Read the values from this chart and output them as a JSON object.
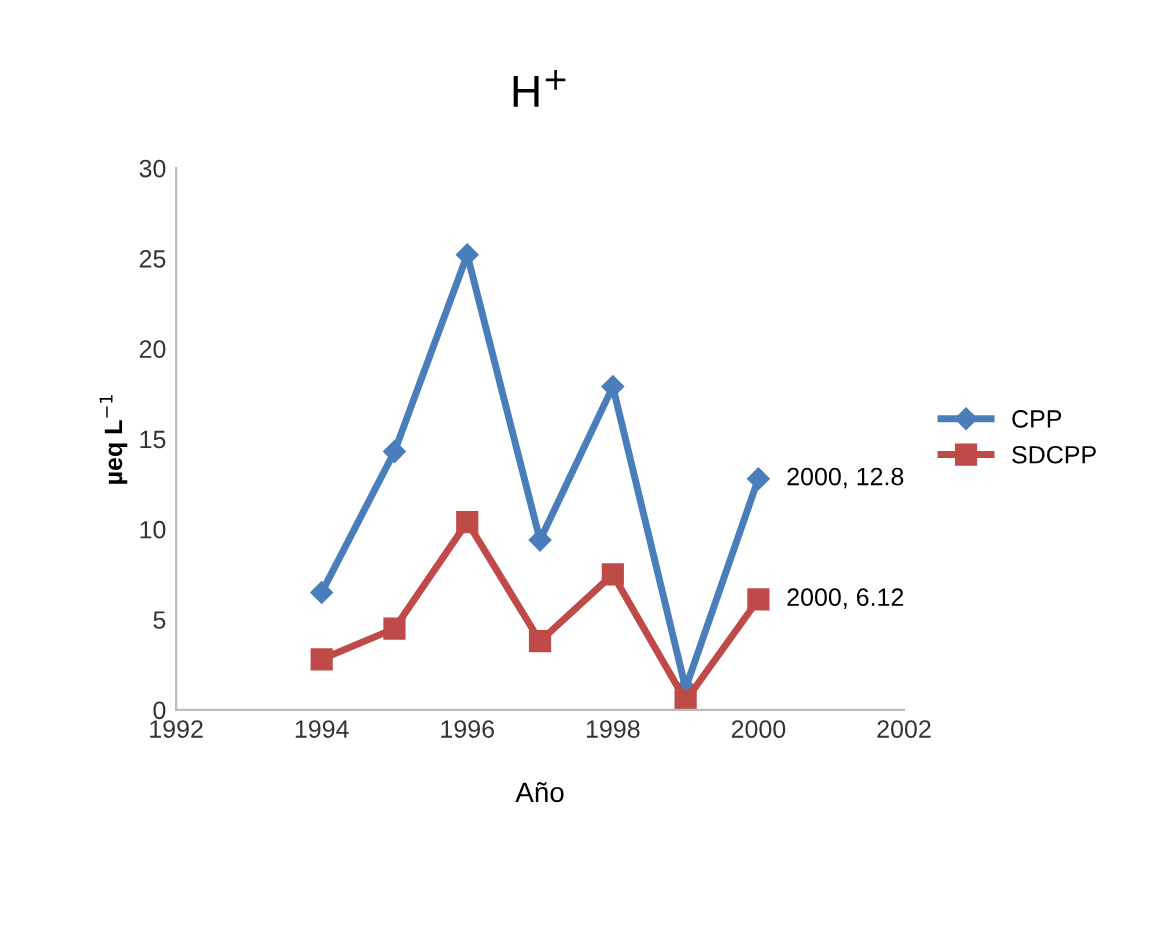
{
  "chart_data": {
    "type": "line",
    "title": "H$^{+}$",
    "xlabel": "Año",
    "ylabel": "µeq L$^{−1}$",
    "x": [
      1994,
      1995,
      1996,
      1997,
      1998,
      1999,
      2000
    ],
    "series": [
      {
        "name": "CPP",
        "color": "#4a7ebb",
        "marker": "diamond",
        "values": [
          6.5,
          14.3,
          25.2,
          9.4,
          17.9,
          1.2,
          12.8
        ]
      },
      {
        "name": "SDCPP",
        "color": "#be4b48",
        "marker": "square",
        "values": [
          2.8,
          4.5,
          10.4,
          3.8,
          7.5,
          0.5,
          6.12
        ]
      }
    ],
    "annotations": [
      {
        "text": "2000, 12.8",
        "x": 2000,
        "y": 12.8
      },
      {
        "text": "2000, 6.12",
        "x": 2000,
        "y": 6.12
      }
    ],
    "xlim": [
      1992,
      2002
    ],
    "xticks": [
      1992,
      1994,
      1996,
      1998,
      2000,
      2002
    ],
    "ylim": [
      0,
      30
    ],
    "yticks": [
      0,
      5,
      10,
      15,
      20,
      25,
      30
    ],
    "grid": false,
    "legend": "right",
    "line_style": "solid"
  }
}
